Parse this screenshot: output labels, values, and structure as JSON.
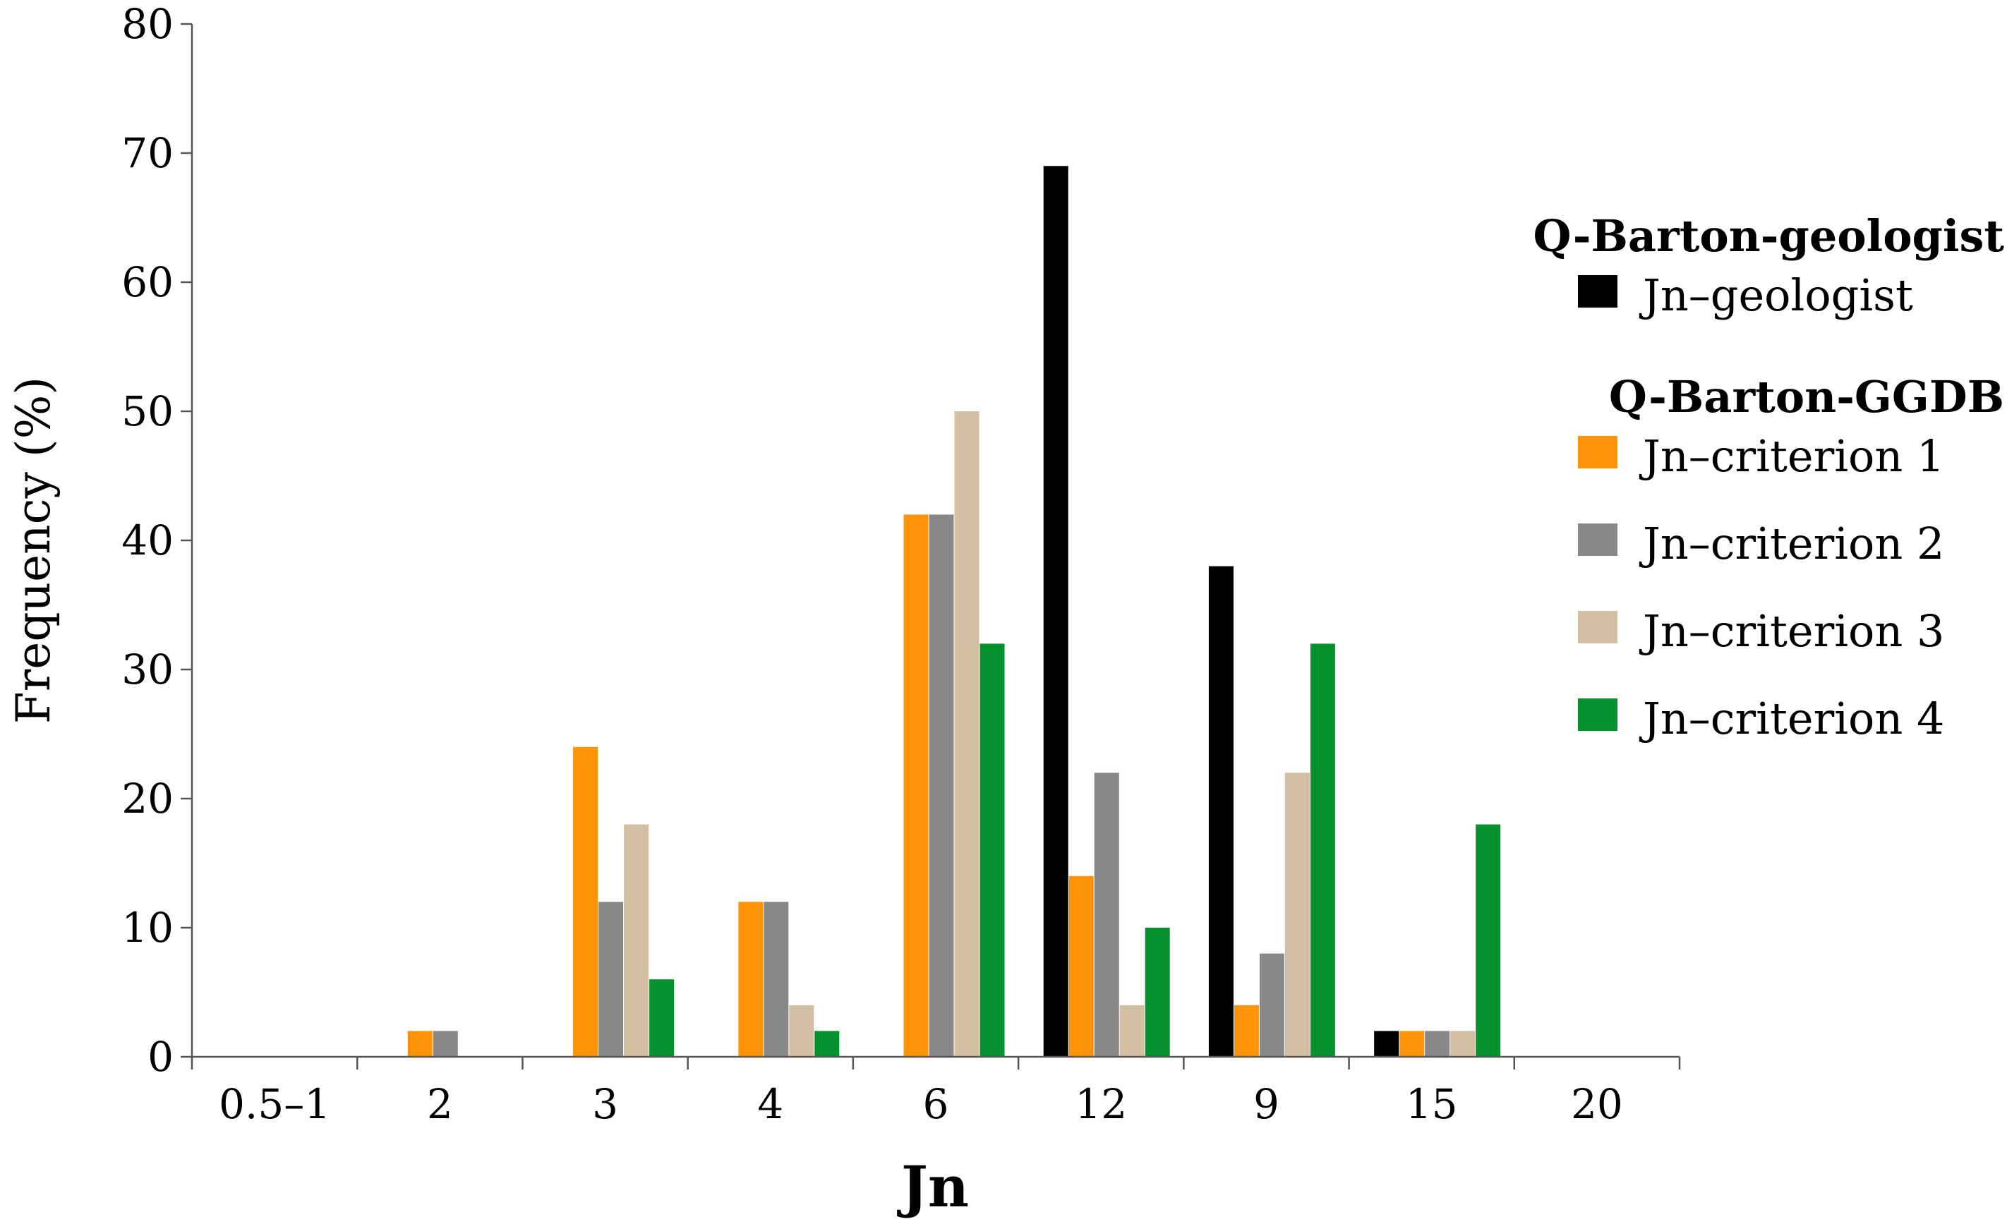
{
  "chart_data": {
    "type": "bar",
    "xlabel": "Jn",
    "ylabel": "Frequency (%)",
    "ylim": [
      0,
      80
    ],
    "yticks": [
      "0",
      "10",
      "20",
      "30",
      "40",
      "50",
      "60",
      "70",
      "80"
    ],
    "categories": [
      "0.5–1",
      "2",
      "3",
      "4",
      "6",
      "12",
      "9",
      "15",
      "20"
    ],
    "grid": false,
    "legend_placement": "right",
    "legend_groups": [
      {
        "title": "Q-Barton-geologist",
        "series_indices": [
          0
        ]
      },
      {
        "title": "Q-Barton-GGDB",
        "series_indices": [
          1,
          2,
          3,
          4
        ]
      }
    ],
    "series": [
      {
        "name": "Jn–geologist",
        "color": "#000000",
        "values": [
          0,
          0,
          0,
          0,
          0,
          69,
          38,
          2,
          0
        ]
      },
      {
        "name": "Jn–criterion 1",
        "color": "#ff9408",
        "values": [
          0,
          2,
          24,
          12,
          42,
          14,
          4,
          2,
          0
        ]
      },
      {
        "name": "Jn–criterion 2",
        "color": "#888888",
        "values": [
          0,
          2,
          12,
          12,
          42,
          22,
          8,
          2,
          0
        ]
      },
      {
        "name": "Jn–criterion 3",
        "color": "#d3bfa2",
        "values": [
          0,
          0,
          18,
          4,
          50,
          4,
          22,
          2,
          0
        ]
      },
      {
        "name": "Jn–criterion 4",
        "color": "#05912d",
        "values": [
          0,
          0,
          6,
          2,
          32,
          10,
          32,
          18,
          0
        ]
      }
    ]
  }
}
